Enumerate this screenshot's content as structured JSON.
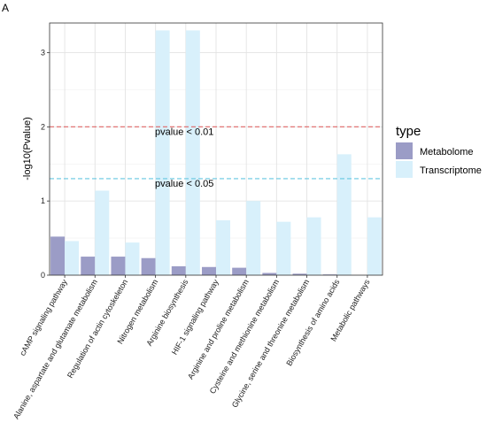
{
  "panel_label": "A",
  "chart_data": {
    "type": "bar",
    "title": "",
    "xlabel": "",
    "ylabel": "-log10(Pvalue)",
    "ylim": [
      0,
      3.4
    ],
    "yticks": [
      0,
      1,
      2,
      3
    ],
    "grid": true,
    "legend": {
      "title": "type",
      "placement": "right"
    },
    "categories": [
      "cAMP signaling pathway",
      "Alanine, aspartate and glutamate metabolism",
      "Regulation of actin cytoskeleton",
      "Nitrogen metabolism",
      "Arginine biosynthesis",
      "HIF-1 signaling pathway",
      "Arginine and proline metabolism",
      "Cysteine and methionine metabolism",
      "Glycine, serine and threonine metabolism",
      "Biosynthesis of amino acids",
      "Metabolic pathways"
    ],
    "series": [
      {
        "name": "Metabolome",
        "color": "#9b9cc6",
        "values": [
          0.52,
          0.25,
          0.25,
          0.23,
          0.12,
          0.11,
          0.1,
          0.03,
          0.02,
          0.01,
          0.0
        ]
      },
      {
        "name": "Transcriptome",
        "color": "#d8f0fb",
        "values": [
          0.46,
          1.14,
          0.44,
          3.3,
          3.3,
          0.74,
          1.0,
          0.72,
          0.78,
          1.63,
          0.78
        ]
      }
    ],
    "reference_lines": [
      {
        "value": 2.0,
        "label": "pvalue < 0.01",
        "color": "#e06666"
      },
      {
        "value": 1.301,
        "label": "pvalue < 0.05",
        "color": "#66c7e0"
      }
    ]
  }
}
